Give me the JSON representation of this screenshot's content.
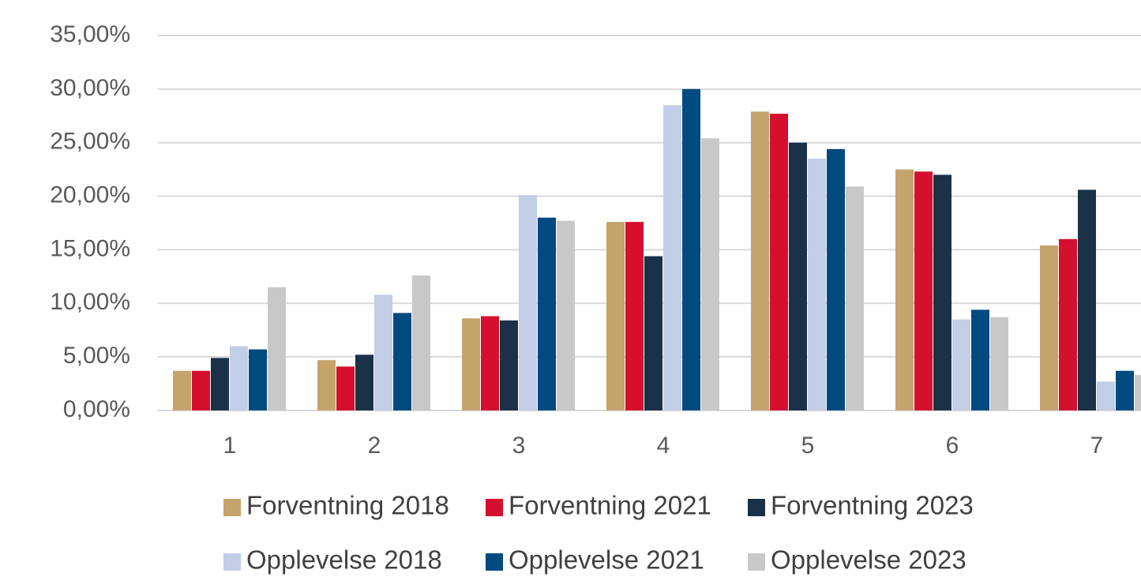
{
  "chart_data": {
    "type": "bar",
    "categories": [
      "1",
      "2",
      "3",
      "4",
      "5",
      "6",
      "7"
    ],
    "series": [
      {
        "name": "Forventning 2018",
        "color": "#c4a46b",
        "values": [
          3.7,
          4.7,
          8.6,
          17.6,
          27.9,
          22.5,
          15.4
        ]
      },
      {
        "name": "Forventning 2021",
        "color": "#d50f2e",
        "values": [
          3.7,
          4.1,
          8.8,
          17.6,
          27.7,
          22.3,
          16.0
        ]
      },
      {
        "name": "Forventning 2023",
        "color": "#1b3147",
        "values": [
          4.9,
          5.2,
          8.4,
          14.4,
          25.0,
          22.0,
          20.6
        ]
      },
      {
        "name": "Opplevelse 2018",
        "color": "#c2cde6",
        "values": [
          6.0,
          10.8,
          20.1,
          28.5,
          23.5,
          8.5,
          2.7
        ]
      },
      {
        "name": "Opplevelse 2021",
        "color": "#004a80",
        "values": [
          5.7,
          9.1,
          18.0,
          30.0,
          24.4,
          9.4,
          3.7
        ]
      },
      {
        "name": "Opplevelse 2023",
        "color": "#c8c8c8",
        "values": [
          11.5,
          12.6,
          17.7,
          25.4,
          20.9,
          8.7,
          3.3
        ]
      }
    ],
    "ylim": [
      0,
      35
    ],
    "yticks": [
      {
        "value": 0,
        "label": "0,00%"
      },
      {
        "value": 5,
        "label": "5,00%"
      },
      {
        "value": 10,
        "label": "10,00%"
      },
      {
        "value": 15,
        "label": "15,00%"
      },
      {
        "value": 20,
        "label": "20,00%"
      },
      {
        "value": 25,
        "label": "25,00%"
      },
      {
        "value": 30,
        "label": "30,00%"
      },
      {
        "value": 35,
        "label": "35,00%"
      }
    ],
    "grid": true,
    "legend": "bottom"
  }
}
